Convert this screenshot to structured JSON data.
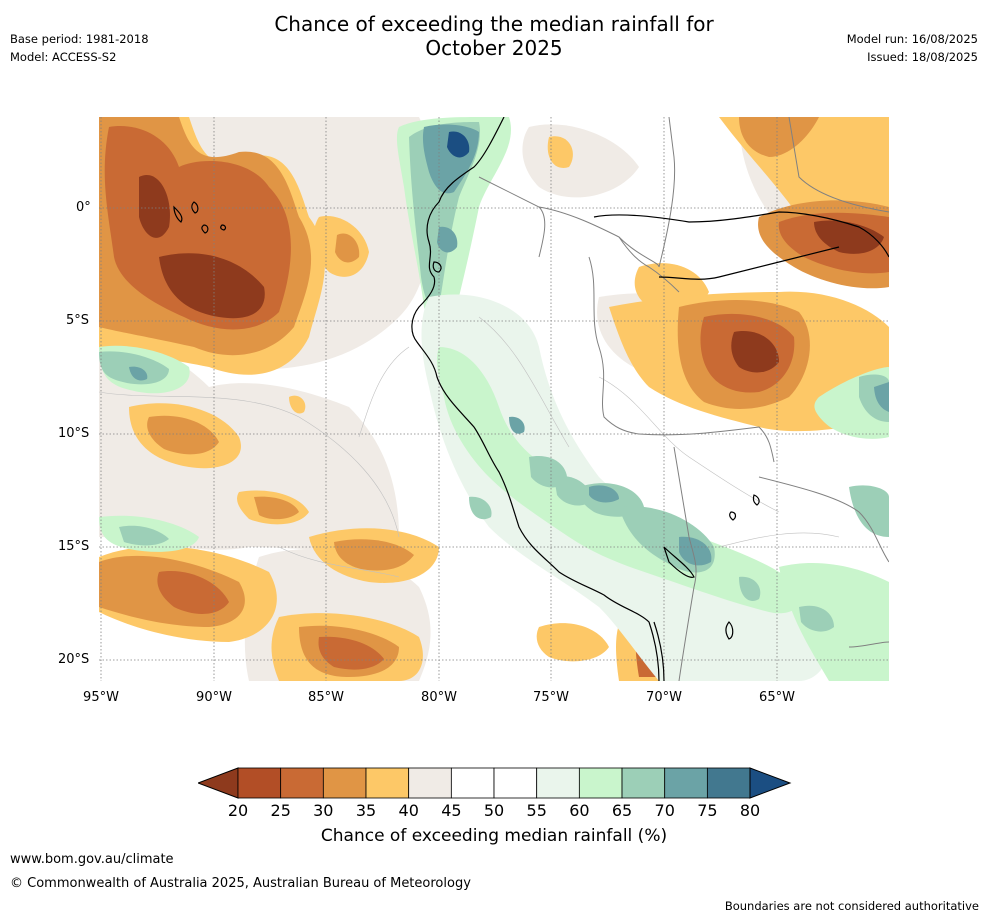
{
  "meta": {
    "base_period": "Base period: 1981-2018",
    "model": "Model: ACCESS-S2",
    "model_run": "Model run: 16/08/2025",
    "issued": "Issued: 18/08/2025"
  },
  "title": {
    "line1": "Chance of exceeding the median rainfall for",
    "line2": "October 2025"
  },
  "axes": {
    "lat_labels": [
      "0°",
      "5°S",
      "10°S",
      "15°S",
      "20°S"
    ],
    "lon_labels": [
      "95°W",
      "90°W",
      "85°W",
      "80°W",
      "75°W",
      "70°W",
      "65°W"
    ]
  },
  "colorbar": {
    "ticks": [
      "20",
      "25",
      "30",
      "35",
      "40",
      "45",
      "50",
      "55",
      "60",
      "65",
      "70",
      "75",
      "80"
    ],
    "colors": [
      "#8e3a1d",
      "#b24e26",
      "#c96a34",
      "#e09545",
      "#fdc867",
      "#f0ebe6",
      "#ffffff",
      "#ffffff",
      "#eaf5ec",
      "#c9f5cc",
      "#9ccfb7",
      "#6ba3a6",
      "#42788f",
      "#1b4e82"
    ],
    "label": "Chance of exceeding median rainfall (%)"
  },
  "footer": {
    "url": "www.bom.gov.au/climate",
    "copyright": "© Commonwealth of Australia 2025, Australian Bureau of Meteorology",
    "disclaimer": "Boundaries are not considered authoritative"
  }
}
